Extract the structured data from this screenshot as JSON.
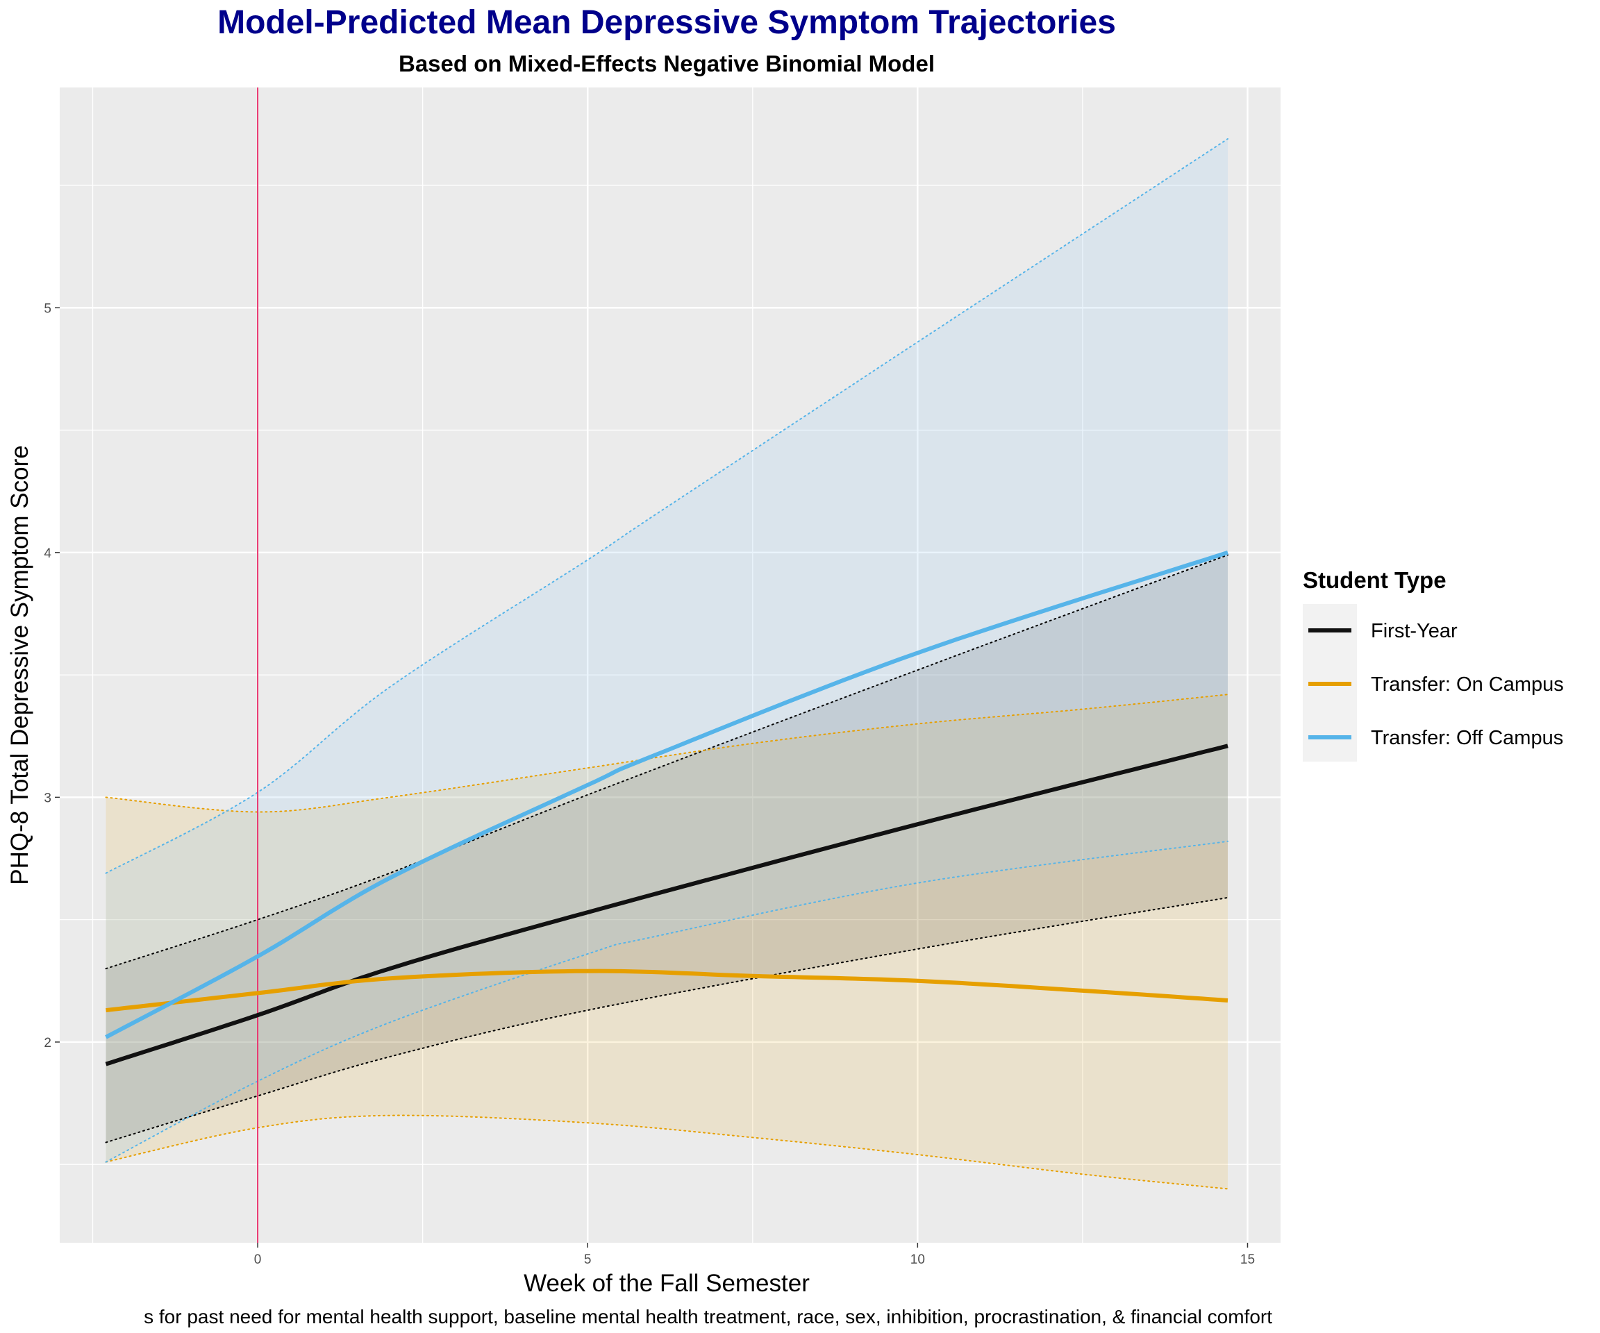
{
  "chart_data": {
    "type": "line",
    "title": "Model-Predicted Mean Depressive Symptom Trajectories",
    "subtitle": "Based on Mixed-Effects Negative Binomial Model",
    "xlabel": "Week of the Fall Semester",
    "ylabel": "PHQ-8 Total Depressive Symptom Score",
    "caption": "s for past need for mental health support, baseline mental health treatment, race, sex, inhibition, procrastination, & financial comfort",
    "xlim": [
      -3,
      15.5
    ],
    "ylim": [
      1.18,
      5.9
    ],
    "x_ticks": [
      0,
      5,
      10,
      15
    ],
    "y_ticks": [
      2,
      3,
      4,
      5
    ],
    "x_minor_ticks": [
      -2.5,
      2.5,
      7.5,
      12.5
    ],
    "y_minor_ticks": [
      1.5,
      2.5,
      3.5,
      4.5,
      5.5
    ],
    "vline": {
      "x": 0,
      "color": "#E8336D"
    },
    "grid": true,
    "panel_background": "#EBEBEB",
    "legend": {
      "title": "Student Type",
      "position": "right",
      "background": "#F2F2F2"
    },
    "series": [
      {
        "name": "First-Year",
        "color": "#111111",
        "fill": "#333333",
        "fill_opacity": 0.16,
        "x": [
          -2.3,
          0,
          2,
          5,
          10,
          14.7
        ],
        "y": [
          1.91,
          2.11,
          2.3,
          2.53,
          2.89,
          3.21
        ],
        "lower": [
          1.59,
          1.78,
          1.94,
          2.13,
          2.38,
          2.59
        ],
        "upper": [
          2.3,
          2.5,
          2.69,
          3.01,
          3.52,
          3.99
        ]
      },
      {
        "name": "Transfer: On Campus",
        "color": "#E69F00",
        "fill": "#E69F00",
        "fill_opacity": 0.13,
        "x": [
          -2.3,
          0,
          2,
          5,
          7.5,
          10,
          12.5,
          14.7
        ],
        "y": [
          2.13,
          2.2,
          2.26,
          2.29,
          2.27,
          2.25,
          2.21,
          2.17
        ],
        "lower": [
          1.51,
          1.65,
          1.7,
          1.67,
          1.61,
          1.54,
          1.46,
          1.4
        ],
        "upper": [
          3.0,
          2.94,
          3.0,
          3.12,
          3.22,
          3.3,
          3.36,
          3.42
        ]
      },
      {
        "name": "Transfer: Off Campus",
        "color": "#56B4E9",
        "fill": "#9FCCF0",
        "fill_opacity": 0.22,
        "x": [
          -2.3,
          0,
          2,
          5,
          6,
          10,
          14.7
        ],
        "y": [
          2.02,
          2.35,
          2.67,
          3.05,
          3.17,
          3.59,
          4.0
        ],
        "lower": [
          1.51,
          1.84,
          2.08,
          2.36,
          2.43,
          2.65,
          2.82
        ],
        "upper": [
          2.69,
          3.02,
          3.45,
          3.97,
          4.15,
          4.86,
          5.69
        ]
      }
    ]
  }
}
